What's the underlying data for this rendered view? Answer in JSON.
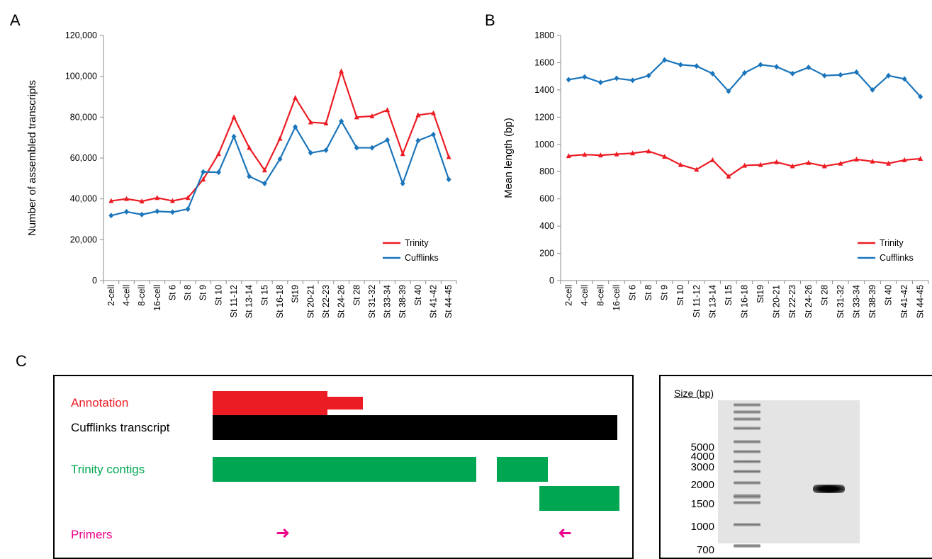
{
  "panels": {
    "a": "A",
    "b": "B",
    "c": "C"
  },
  "chart_data": [
    {
      "type": "line",
      "ylabel": "Number of assembled transcripts",
      "ylim": [
        0,
        120000
      ],
      "yticks": [
        "0",
        "20,000",
        "40,000",
        "60,000",
        "80,000",
        "100,000",
        "120,000"
      ],
      "ytick_values": [
        0,
        20000,
        40000,
        60000,
        80000,
        100000,
        120000
      ],
      "categories": [
        "2-cell",
        "4-cell",
        "8-cell",
        "16-cell",
        "St 6",
        "St 8",
        "St 9",
        "St 10",
        "St 11-12",
        "St 13-14",
        "St 15",
        "St 16-18",
        "St19",
        "St 20-21",
        "St 22-23",
        "St 24-26",
        "St 28",
        "St 31-32",
        "St 33-34",
        "St 38-39",
        "St 40",
        "St 41-42",
        "St 44-45"
      ],
      "legend_position": "bottom-right",
      "series": [
        {
          "name": "Trinity",
          "color": "#ec1c24",
          "marker": "triangle",
          "values": [
            39000,
            40000,
            38800,
            40500,
            39000,
            40500,
            49500,
            62000,
            80000,
            65000,
            54000,
            69500,
            89500,
            77500,
            77000,
            102500,
            80000,
            80500,
            83500,
            62000,
            81000,
            82000,
            60500
          ]
        },
        {
          "name": "Cufflinks",
          "color": "#1b75bb",
          "marker": "diamond",
          "values": [
            31800,
            33700,
            32300,
            33900,
            33500,
            35000,
            53200,
            53000,
            70500,
            51000,
            47500,
            59500,
            75200,
            62500,
            63800,
            78000,
            65000,
            65000,
            68800,
            47500,
            68500,
            71500,
            49500
          ]
        }
      ]
    },
    {
      "type": "line",
      "ylabel": "Mean length (bp)",
      "ylim": [
        0,
        1800
      ],
      "yticks": [
        "0",
        "200",
        "400",
        "600",
        "800",
        "1000",
        "1200",
        "1400",
        "1600",
        "1800"
      ],
      "ytick_values": [
        0,
        200,
        400,
        600,
        800,
        1000,
        1200,
        1400,
        1600,
        1800
      ],
      "categories": [
        "2-cell",
        "4-cell",
        "8-cell",
        "16-cell",
        "St 6",
        "St 8",
        "St 9",
        "St 10",
        "St 11-12",
        "St 13-14",
        "St 15",
        "St 16-18",
        "St19",
        "St 20-21",
        "St 22-23",
        "St 24-26",
        "St 28",
        "St 31-32",
        "St 33-34",
        "St 38-39",
        "St 40",
        "St 41-42",
        "St 44-45"
      ],
      "legend_position": "bottom-right",
      "series": [
        {
          "name": "Trinity",
          "color": "#ec1c24",
          "marker": "triangle",
          "values": [
            915,
            925,
            920,
            928,
            935,
            950,
            910,
            850,
            815,
            885,
            765,
            845,
            850,
            870,
            840,
            865,
            840,
            860,
            890,
            875,
            860,
            885,
            895
          ]
        },
        {
          "name": "Cufflinks",
          "color": "#1b75bb",
          "marker": "diamond",
          "values": [
            1475,
            1495,
            1455,
            1485,
            1470,
            1505,
            1620,
            1585,
            1575,
            1520,
            1390,
            1525,
            1585,
            1570,
            1520,
            1565,
            1505,
            1510,
            1530,
            1400,
            1505,
            1480,
            1350
          ]
        }
      ]
    }
  ],
  "diagram": {
    "labels": {
      "annotation": "Annotation",
      "cufflinks": "Cufflinks transcript",
      "trinity": "Trinity contigs",
      "primers": "Primers"
    },
    "primer_forward_glyph": "➜",
    "primer_reverse_glyph": "➜",
    "colors": {
      "annotation": "#ec1c24",
      "cufflinks": "#000000",
      "trinity": "#00a651",
      "primers": "#ec008c"
    }
  },
  "gel": {
    "size_title": "Size (bp)",
    "ladder_labels": [
      "5000",
      "4000",
      "3000",
      "2000",
      "1500",
      "1000",
      "700"
    ]
  }
}
